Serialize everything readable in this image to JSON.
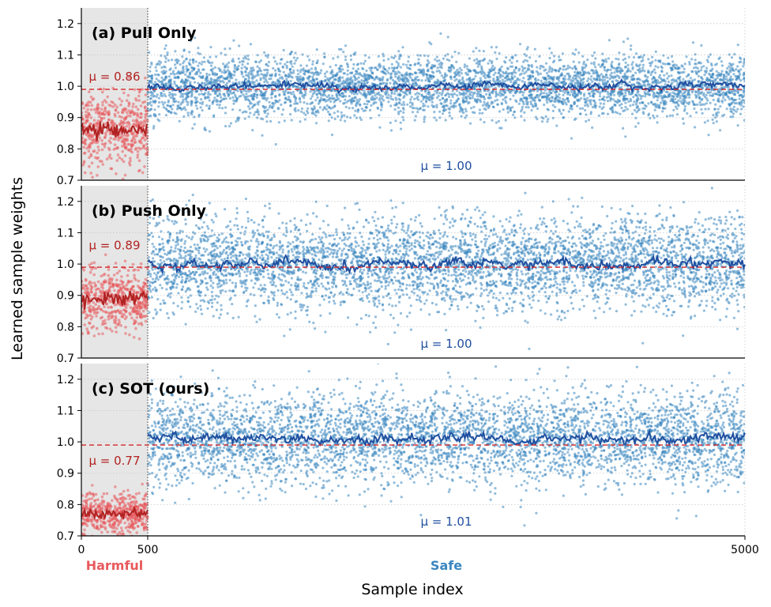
{
  "chart_data": {
    "type": "scatter",
    "xlabel": "Sample index",
    "ylabel": "Learned sample weights",
    "xlim": [
      0,
      5000
    ],
    "ylim": [
      0.7,
      1.25
    ],
    "x_ticks": [
      0,
      500,
      5000
    ],
    "y_ticks": [
      0.7,
      0.8,
      0.9,
      1.0,
      1.1,
      1.2
    ],
    "reference_line": 0.99,
    "harmful_boundary": 500,
    "region_labels": {
      "harmful": "Harmful",
      "safe": "Safe"
    },
    "colors": {
      "harmful_points": "#e8595c",
      "harmful_trend": "#b22222",
      "safe_points": "#3a86c0",
      "safe_trend": "#1f4fa0",
      "reference": "#d62728",
      "shade": "#e6e6e6"
    },
    "panels": [
      {
        "title": "(a) Pull Only",
        "harmful_mean": 0.86,
        "safe_mean": 1.0,
        "harmful_mean_label": "μ = 0.86",
        "safe_mean_label": "μ = 1.00",
        "harmful_spread": 0.06,
        "safe_spread": 0.05
      },
      {
        "title": "(b) Push Only",
        "harmful_mean": 0.89,
        "safe_mean": 1.0,
        "harmful_mean_label": "μ = 0.89",
        "safe_mean_label": "μ = 1.00",
        "harmful_spread": 0.05,
        "safe_spread": 0.075
      },
      {
        "title": "(c) SOT (ours)",
        "harmful_mean": 0.77,
        "safe_mean": 1.01,
        "harmful_mean_label": "μ = 0.77",
        "safe_mean_label": "μ = 1.01",
        "harmful_spread": 0.035,
        "safe_spread": 0.075
      }
    ]
  }
}
